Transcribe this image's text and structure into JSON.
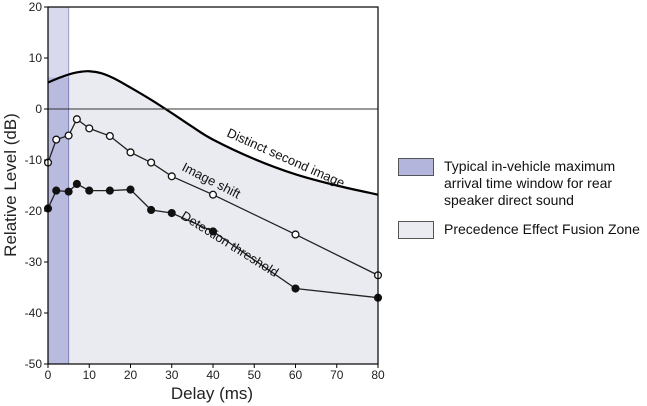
{
  "chart_data": {
    "type": "line",
    "xlabel": "Delay (ms)",
    "ylabel": "Relative Level (dB)",
    "xlim": [
      0,
      80
    ],
    "ylim": [
      -50,
      20
    ],
    "xticks": [
      0,
      10,
      20,
      30,
      40,
      50,
      60,
      70,
      80
    ],
    "yticks": [
      20,
      10,
      0,
      -10,
      -20,
      -30,
      -40,
      -50
    ],
    "reference_line_y": 0,
    "shaded_window": {
      "x": [
        0,
        5
      ],
      "color": "#b3b5dc"
    },
    "fusion_zone_color": "#eaebf1",
    "series": [
      {
        "name": "Distinct second image",
        "marker": "none",
        "x": [
          0,
          3,
          6,
          8,
          10,
          13,
          16,
          20,
          25,
          30,
          35,
          40,
          50,
          60,
          70,
          80
        ],
        "y": [
          5.2,
          6.2,
          7.0,
          7.3,
          7.4,
          7.0,
          6.0,
          4.2,
          1.8,
          -0.8,
          -3.5,
          -6.0,
          -9.8,
          -12.8,
          -15.0,
          -16.8
        ]
      },
      {
        "name": "Image shift",
        "marker": "open",
        "x": [
          0,
          2,
          5,
          7,
          10,
          15,
          20,
          25,
          30,
          40,
          60,
          80
        ],
        "y": [
          -10.5,
          -6.0,
          -5.2,
          -2.0,
          -3.8,
          -5.3,
          -8.5,
          -10.5,
          -13.2,
          -16.8,
          -24.6,
          -32.6
        ]
      },
      {
        "name": "Detection threshold",
        "marker": "filled",
        "x": [
          0,
          2,
          5,
          7,
          10,
          15,
          20,
          25,
          30,
          40,
          60,
          80
        ],
        "y": [
          -19.5,
          -16.0,
          -16.2,
          -14.7,
          -16.0,
          -16.0,
          -15.8,
          -19.8,
          -20.4,
          -24.0,
          -35.2,
          -37.0
        ]
      }
    ],
    "legend": {
      "placement": "right",
      "items": [
        {
          "label": "Typical in-vehicle maximum arrival time window for rear speaker direct sound",
          "color": "#b3b5dc"
        },
        {
          "label": "Precedence Effect Fusion Zone",
          "color": "#eaebf1"
        }
      ]
    }
  }
}
